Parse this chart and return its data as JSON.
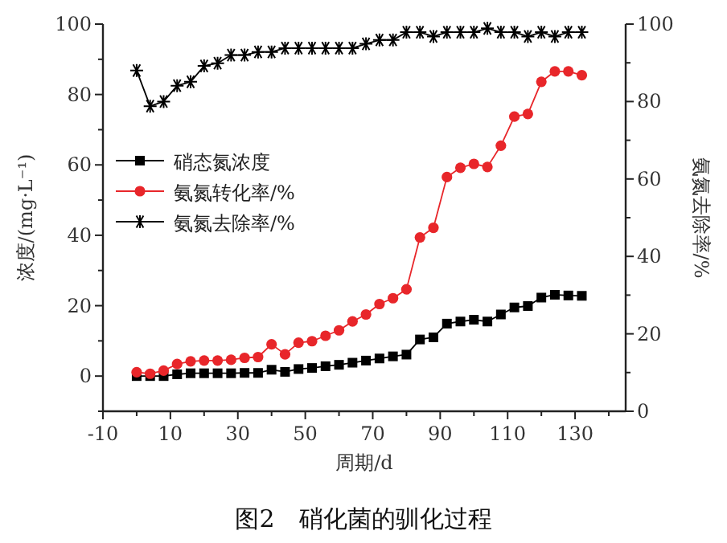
{
  "chart_data": {
    "type": "line",
    "title": "图2　硝化菌的驯化过程",
    "xlabel": "周期/d",
    "ylabel": "浓度/(mg·L⁻¹)",
    "y2label": "氨氮去除率/%",
    "x": [
      0,
      4,
      8,
      12,
      16,
      20,
      24,
      28,
      32,
      36,
      40,
      44,
      48,
      52,
      56,
      60,
      64,
      68,
      72,
      76,
      80,
      84,
      88,
      92,
      96,
      100,
      104,
      108,
      112,
      116,
      120,
      124,
      128,
      132
    ],
    "series": [
      {
        "name": "硝态氮浓度",
        "color": "#000000",
        "marker": "square",
        "values": [
          0,
          0,
          0,
          0.5,
          0.8,
          0.8,
          0.8,
          0.8,
          0.9,
          0.9,
          1.8,
          1.2,
          2.0,
          2.3,
          2.8,
          3.2,
          3.8,
          4.4,
          5.0,
          5.6,
          6.1,
          10.4,
          11.0,
          14.9,
          15.5,
          16.0,
          15.5,
          17.5,
          19.5,
          19.9,
          22.3,
          23.1,
          22.9,
          22.8
        ]
      },
      {
        "name": "氨氮转化率/%",
        "color": "#e8262a",
        "marker": "circle",
        "axis": "y2",
        "values": [
          10.1,
          9.7,
          10.5,
          12.2,
          12.9,
          13.1,
          13.1,
          13.3,
          13.8,
          14.0,
          17.3,
          14.7,
          17.7,
          18.1,
          19.5,
          20.9,
          23.2,
          25.0,
          27.7,
          29.2,
          31.5,
          44.9,
          47.4,
          60.5,
          62.9,
          63.9,
          63.1,
          68.6,
          76.1,
          76.8,
          85.1,
          87.8,
          87.8,
          86.8
        ]
      },
      {
        "name": "氨氮去除率/%",
        "color": "#000000",
        "marker": "cross",
        "axis": "y2",
        "values": [
          88.0,
          78.8,
          80.0,
          84.1,
          85.1,
          89.2,
          89.9,
          92.0,
          92.0,
          92.8,
          92.8,
          93.8,
          93.8,
          93.8,
          93.8,
          93.8,
          93.8,
          94.9,
          95.9,
          95.9,
          97.9,
          97.9,
          96.8,
          97.9,
          97.9,
          97.9,
          98.9,
          97.9,
          97.9,
          96.8,
          97.9,
          96.8,
          97.9,
          97.9
        ]
      }
    ],
    "xlim": [
      -10,
      145
    ],
    "xticks": [
      -10,
      {
        "value": 0,
        "label": null
      },
      10,
      {
        "value": 20,
        "label": null
      },
      30,
      {
        "value": 40,
        "label": null
      },
      50,
      {
        "value": 60,
        "label": null
      },
      70,
      {
        "value": 80,
        "label": null
      },
      90,
      {
        "value": 100,
        "label": null
      },
      110,
      {
        "value": 120,
        "label": null
      },
      130,
      {
        "value": 140,
        "label": null
      }
    ],
    "ylim": [
      -10,
      100
    ],
    "yticks": [
      {
        "value": -10,
        "label": null
      },
      0,
      {
        "value": 10,
        "label": null
      },
      20,
      {
        "value": 30,
        "label": null
      },
      40,
      {
        "value": 50,
        "label": null
      },
      60,
      {
        "value": 70,
        "label": null
      },
      80,
      {
        "value": 90,
        "label": null
      },
      100
    ],
    "y2lim": [
      0,
      100
    ],
    "y2ticks": [
      0,
      {
        "value": 10,
        "label": null
      },
      20,
      {
        "value": 30,
        "label": null
      },
      40,
      {
        "value": 50,
        "label": null
      },
      60,
      {
        "value": 70,
        "label": null
      },
      80,
      {
        "value": 90,
        "label": null
      },
      100
    ],
    "grid": false,
    "legend": "left",
    "line_style": "solid"
  }
}
